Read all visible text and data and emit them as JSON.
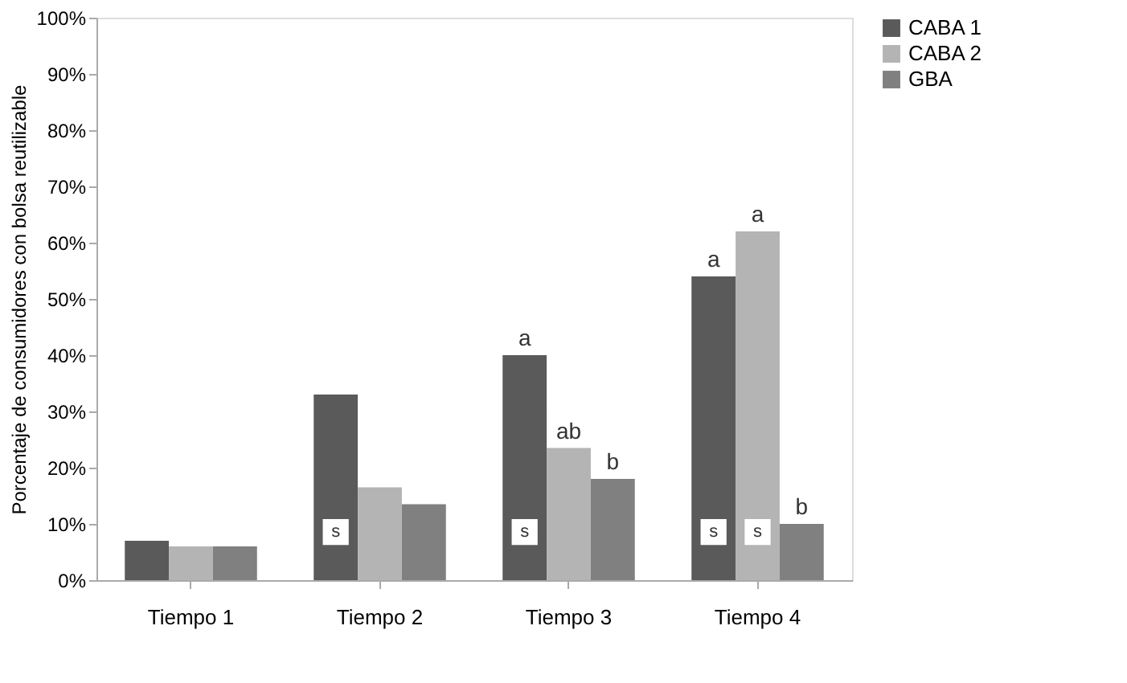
{
  "chart_data": {
    "type": "bar",
    "ylabel": "Porcentaje de consumidores con bolsa reutilizable",
    "categories": [
      "Tiempo 1",
      "Tiempo 2",
      "Tiempo 3",
      "Tiempo 4"
    ],
    "series": [
      {
        "name": "CABA 1",
        "color": "#5a5a5a",
        "values": [
          7,
          33,
          40,
          54
        ],
        "value_labels": [
          null,
          null,
          "a",
          "a"
        ]
      },
      {
        "name": "CABA 2",
        "color": "#b4b4b4",
        "values": [
          6,
          16.5,
          23.5,
          62
        ],
        "value_labels": [
          null,
          null,
          "ab",
          "a"
        ]
      },
      {
        "name": "GBA",
        "color": "#808080",
        "values": [
          6,
          13.5,
          18,
          10
        ],
        "value_labels": [
          null,
          null,
          "b",
          "b"
        ]
      }
    ],
    "ylim": [
      0,
      100
    ],
    "yticks": [
      {
        "value": 0,
        "label": "0%"
      },
      {
        "value": 10,
        "label": "10%"
      },
      {
        "value": 20,
        "label": "20%"
      },
      {
        "value": 30,
        "label": "30%"
      },
      {
        "value": 40,
        "label": "40%"
      },
      {
        "value": 50,
        "label": "50%"
      },
      {
        "value": 60,
        "label": "60%"
      },
      {
        "value": 70,
        "label": "70%"
      },
      {
        "value": 80,
        "label": "80%"
      },
      {
        "value": 90,
        "label": "90%"
      },
      {
        "value": 100,
        "label": "100%"
      }
    ],
    "annotations": [
      "s",
      "s",
      "s",
      "s"
    ],
    "grid": false,
    "legend": "top right"
  }
}
